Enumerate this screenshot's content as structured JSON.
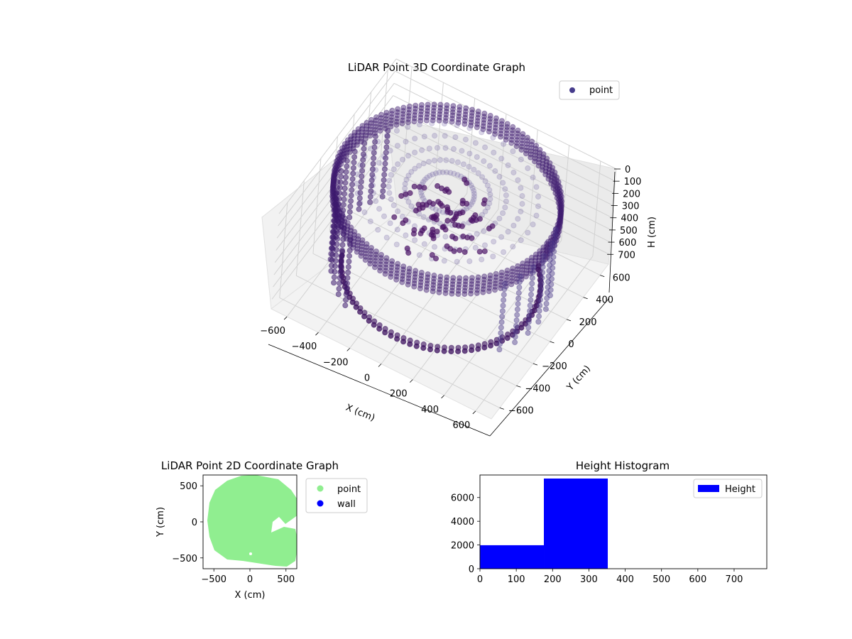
{
  "chart_data": [
    {
      "type": "scatter3d",
      "title": "LiDAR Point 3D Coordinate Graph",
      "xlabel": "X (cm)",
      "ylabel": "Y (cm)",
      "zlabel": "H (cm)",
      "xlim": [
        -700,
        700
      ],
      "ylim": [
        -700,
        700
      ],
      "zlim": [
        0,
        780
      ],
      "z_inverted": true,
      "xticks": [
        -600,
        -400,
        -200,
        0,
        200,
        400,
        600
      ],
      "yticks": [
        -600,
        -400,
        -200,
        0,
        200,
        400,
        600
      ],
      "zticks": [
        0,
        100,
        200,
        300,
        400,
        500,
        600,
        700
      ],
      "legend": {
        "label": "point",
        "position": "top-right"
      },
      "color": "#4a2a7a",
      "grid": true,
      "series": [
        {
          "name": "point",
          "note_shape": "ceiling ring ~650cm radius at H≈0, dense blob at H≈200-350, lower ring at H≈650-700"
        }
      ]
    },
    {
      "type": "scatter",
      "title": "LiDAR Point 2D Coordinate Graph",
      "xlabel": "X (cm)",
      "ylabel": "Y (cm)",
      "xlim": [
        -650,
        650
      ],
      "ylim": [
        -650,
        650
      ],
      "xticks": [
        -500,
        0,
        500
      ],
      "yticks": [
        500,
        0,
        -500
      ],
      "legend": {
        "position": "outside-right",
        "entries": [
          {
            "label": "point",
            "color": "#90ee90"
          },
          {
            "label": "wall",
            "color": "#0000ff"
          }
        ]
      },
      "series": [
        {
          "name": "point",
          "color": "#90ee90"
        },
        {
          "name": "wall",
          "color": "#0000ff"
        }
      ]
    },
    {
      "type": "bar",
      "title": "Height Histogram",
      "xlim": [
        0,
        790
      ],
      "ylim": [
        0,
        7900
      ],
      "xticks": [
        0,
        100,
        200,
        300,
        400,
        500,
        600,
        700
      ],
      "yticks": [
        0,
        2000,
        4000,
        6000
      ],
      "legend": {
        "label": "Height",
        "position": "top-right"
      },
      "color": "#0000ff",
      "bins": [
        {
          "start": 0,
          "end": 176,
          "count": 1980
        },
        {
          "start": 176,
          "end": 352,
          "count": 7600
        },
        {
          "start": 352,
          "end": 528,
          "count": 0
        },
        {
          "start": 528,
          "end": 704,
          "count": 0
        },
        {
          "start": 704,
          "end": 790,
          "count": 0
        }
      ]
    }
  ]
}
